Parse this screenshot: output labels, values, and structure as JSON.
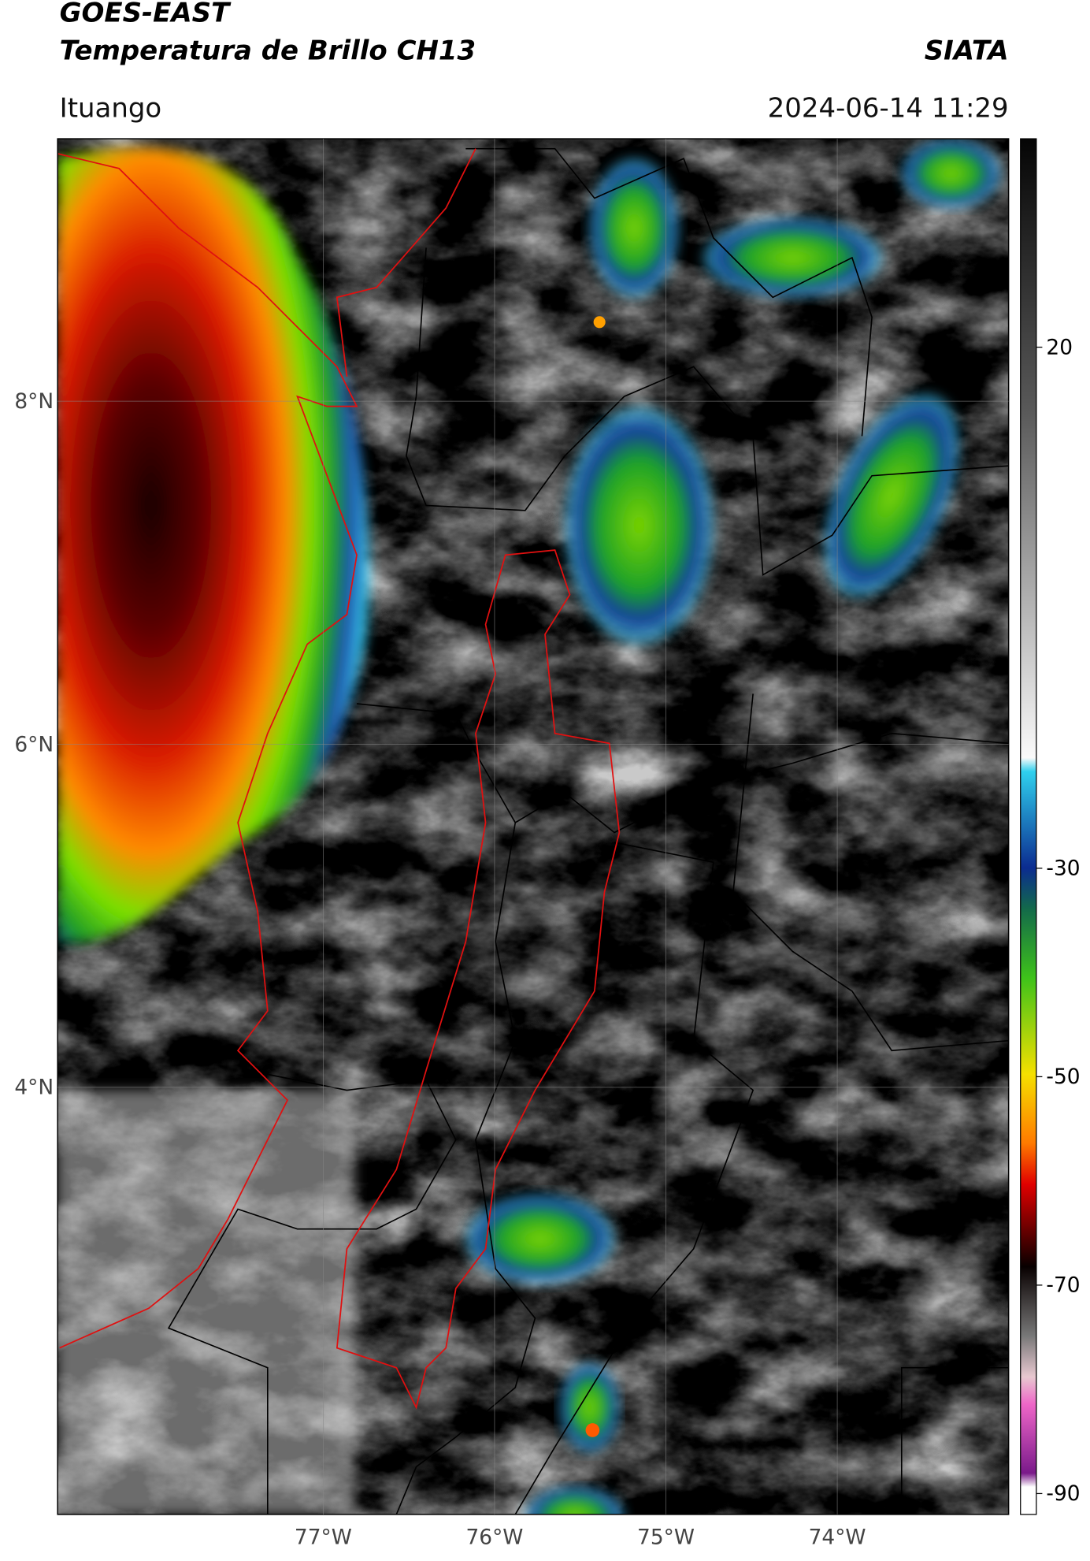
{
  "header": {
    "title": "GOES-EAST",
    "subtitle": "Temperatura de Brillo CH13",
    "source": "SIATA",
    "location": "Ituango",
    "datetime": "2024-06-14 11:29"
  },
  "map": {
    "xlim": [
      -78.55,
      -73.0
    ],
    "ylim": [
      1.51,
      9.53
    ],
    "lat_ticks": [
      {
        "value": 8,
        "label": "8°N"
      },
      {
        "value": 6,
        "label": "6°N"
      },
      {
        "value": 4,
        "label": "4°N"
      }
    ],
    "lon_ticks": [
      {
        "value": -77,
        "label": "77°W"
      },
      {
        "value": -76,
        "label": "76°W"
      },
      {
        "value": -75,
        "label": "75°W"
      },
      {
        "value": -74,
        "label": "74°W"
      }
    ]
  },
  "colorbar": {
    "lim": [
      -92,
      40
    ],
    "ticks": [
      20,
      -30,
      -50,
      -70,
      -90
    ]
  }
}
